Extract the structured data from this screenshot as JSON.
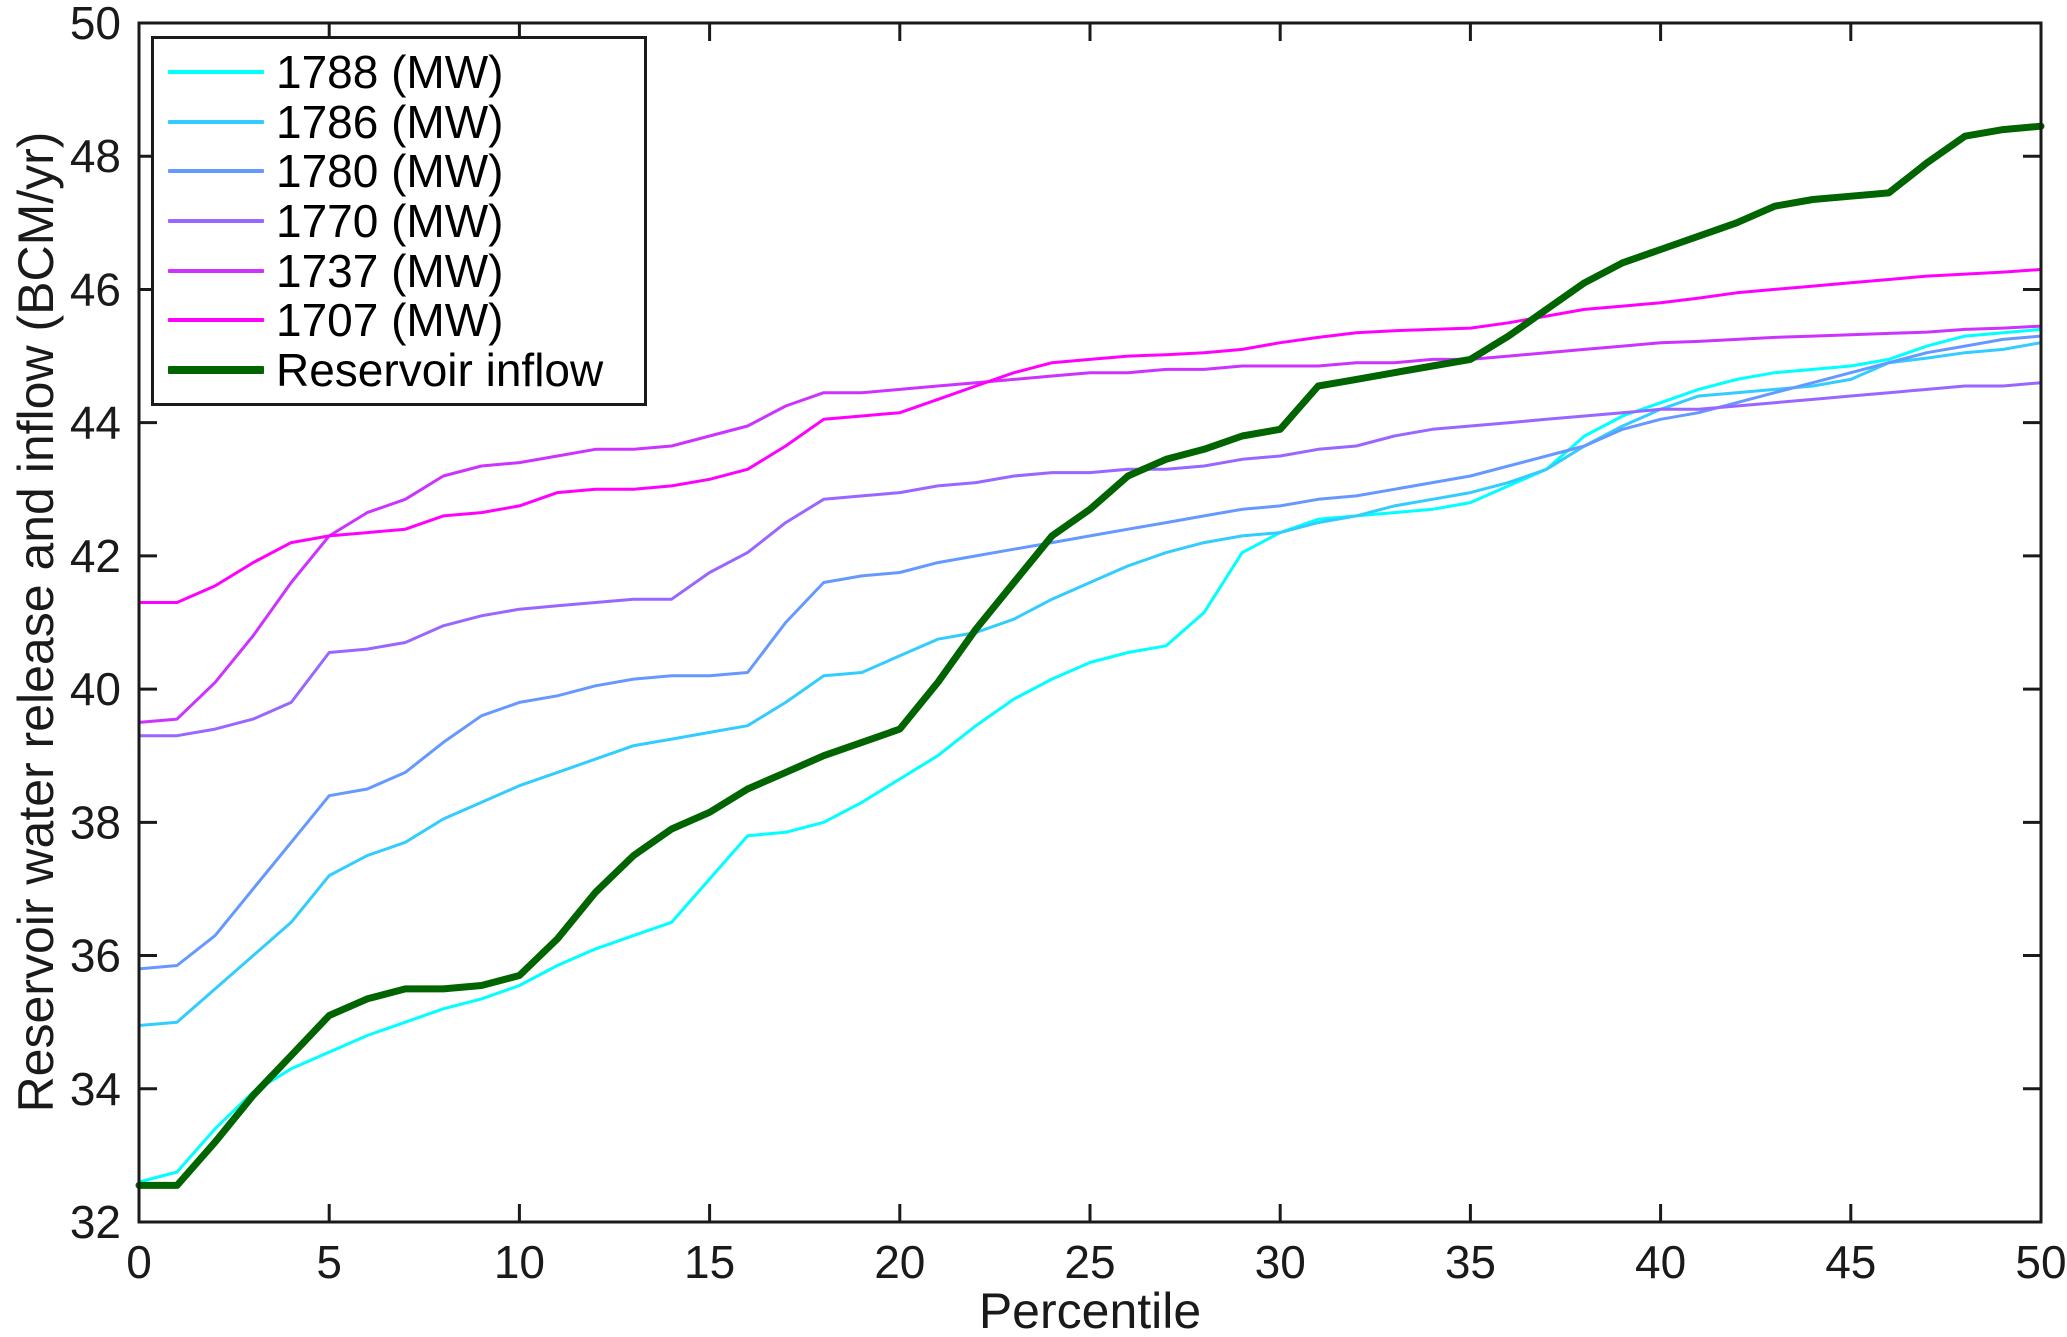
{
  "figure": {
    "background": "#FFFFFF",
    "axis_color": "#1A1A1A",
    "text_color": "#1A1A1A"
  },
  "chart_data": {
    "type": "line",
    "title": "",
    "xlabel": "Percentile",
    "ylabel": "Reservoir water release and inflow (BCM/yr)",
    "xlim": [
      0,
      50
    ],
    "ylim": [
      32,
      50
    ],
    "xticks": [
      0,
      5,
      10,
      15,
      20,
      25,
      30,
      35,
      40,
      45,
      50
    ],
    "yticks": [
      32,
      34,
      36,
      38,
      40,
      42,
      44,
      46,
      48,
      50
    ],
    "grid": false,
    "legend_position": "top-left",
    "x": [
      0,
      1,
      2,
      3,
      4,
      5,
      6,
      7,
      8,
      9,
      10,
      11,
      12,
      13,
      14,
      15,
      16,
      17,
      18,
      19,
      20,
      21,
      22,
      23,
      24,
      25,
      26,
      27,
      28,
      29,
      30,
      31,
      32,
      33,
      34,
      35,
      36,
      37,
      38,
      39,
      40,
      41,
      42,
      43,
      44,
      45,
      46,
      47,
      48,
      49,
      50
    ],
    "series": [
      {
        "name": "1788 (MW)",
        "color": "#00FFFF",
        "width": 3,
        "values": [
          32.6,
          32.75,
          33.4,
          33.95,
          34.3,
          34.55,
          34.8,
          35.0,
          35.2,
          35.35,
          35.55,
          35.85,
          36.1,
          36.3,
          36.5,
          37.15,
          37.8,
          37.85,
          38.0,
          38.3,
          38.65,
          39.0,
          39.45,
          39.85,
          40.15,
          40.4,
          40.55,
          40.65,
          41.15,
          42.05,
          42.35,
          42.55,
          42.6,
          42.65,
          42.7,
          42.8,
          43.05,
          43.3,
          43.8,
          44.1,
          44.3,
          44.5,
          44.65,
          44.75,
          44.8,
          44.85,
          44.95,
          45.15,
          45.3,
          45.35,
          45.4
        ]
      },
      {
        "name": "1786 (MW)",
        "color": "#33CCFF",
        "width": 3,
        "values": [
          34.95,
          35.0,
          35.5,
          36.0,
          36.5,
          37.2,
          37.5,
          37.7,
          38.05,
          38.3,
          38.55,
          38.75,
          38.95,
          39.15,
          39.25,
          39.35,
          39.45,
          39.8,
          40.2,
          40.25,
          40.5,
          40.75,
          40.85,
          41.05,
          41.35,
          41.6,
          41.85,
          42.05,
          42.2,
          42.3,
          42.35,
          42.5,
          42.6,
          42.75,
          42.85,
          42.95,
          43.1,
          43.3,
          43.65,
          43.95,
          44.2,
          44.4,
          44.45,
          44.5,
          44.55,
          44.65,
          44.9,
          44.97,
          45.05,
          45.1,
          45.2
        ]
      },
      {
        "name": "1780 (MW)",
        "color": "#6699FF",
        "width": 3,
        "values": [
          35.8,
          35.85,
          36.3,
          37.0,
          37.7,
          38.4,
          38.5,
          38.75,
          39.2,
          39.6,
          39.8,
          39.9,
          40.05,
          40.15,
          40.2,
          40.2,
          40.25,
          41.0,
          41.6,
          41.7,
          41.75,
          41.9,
          42.0,
          42.1,
          42.2,
          42.3,
          42.4,
          42.5,
          42.6,
          42.7,
          42.75,
          42.85,
          42.9,
          43.0,
          43.1,
          43.2,
          43.35,
          43.5,
          43.65,
          43.9,
          44.05,
          44.15,
          44.3,
          44.45,
          44.6,
          44.75,
          44.9,
          45.05,
          45.15,
          45.25,
          45.3
        ]
      },
      {
        "name": "1770 (MW)",
        "color": "#9966FF",
        "width": 3,
        "values": [
          39.3,
          39.3,
          39.4,
          39.55,
          39.8,
          40.55,
          40.6,
          40.7,
          40.95,
          41.1,
          41.2,
          41.25,
          41.3,
          41.35,
          41.35,
          41.75,
          42.05,
          42.5,
          42.85,
          42.9,
          42.95,
          43.05,
          43.1,
          43.2,
          43.25,
          43.25,
          43.3,
          43.3,
          43.35,
          43.45,
          43.5,
          43.6,
          43.65,
          43.8,
          43.9,
          43.95,
          44.0,
          44.05,
          44.1,
          44.15,
          44.2,
          44.2,
          44.25,
          44.3,
          44.35,
          44.4,
          44.45,
          44.5,
          44.55,
          44.55,
          44.6
        ]
      },
      {
        "name": "1737 (MW)",
        "color": "#CC33FF",
        "width": 3,
        "values": [
          39.5,
          39.55,
          40.1,
          40.8,
          41.6,
          42.3,
          42.65,
          42.85,
          43.2,
          43.35,
          43.4,
          43.5,
          43.6,
          43.6,
          43.65,
          43.8,
          43.95,
          44.25,
          44.45,
          44.45,
          44.5,
          44.55,
          44.6,
          44.65,
          44.7,
          44.75,
          44.75,
          44.8,
          44.8,
          44.85,
          44.85,
          44.85,
          44.9,
          44.9,
          44.95,
          44.95,
          45.0,
          45.05,
          45.1,
          45.15,
          45.2,
          45.22,
          45.25,
          45.28,
          45.3,
          45.32,
          45.34,
          45.36,
          45.4,
          45.42,
          45.45
        ]
      },
      {
        "name": "1707 (MW)",
        "color": "#FF00FF",
        "width": 3,
        "values": [
          41.3,
          41.3,
          41.55,
          41.9,
          42.2,
          42.3,
          42.35,
          42.4,
          42.6,
          42.65,
          42.75,
          42.95,
          43.0,
          43.0,
          43.05,
          43.15,
          43.3,
          43.65,
          44.05,
          44.1,
          44.15,
          44.35,
          44.55,
          44.75,
          44.9,
          44.95,
          45.0,
          45.02,
          45.05,
          45.1,
          45.2,
          45.28,
          45.35,
          45.38,
          45.4,
          45.42,
          45.5,
          45.6,
          45.7,
          45.75,
          45.8,
          45.87,
          45.95,
          46.0,
          46.05,
          46.1,
          46.15,
          46.2,
          46.23,
          46.26,
          46.3
        ]
      },
      {
        "name": "Reservoir inflow",
        "color": "#006400",
        "width": 7,
        "values": [
          32.55,
          32.55,
          33.2,
          33.9,
          34.5,
          35.1,
          35.35,
          35.5,
          35.5,
          35.55,
          35.7,
          36.25,
          36.95,
          37.5,
          37.9,
          38.15,
          38.5,
          38.75,
          39.0,
          39.2,
          39.4,
          40.1,
          40.9,
          41.6,
          42.3,
          42.7,
          43.2,
          43.45,
          43.6,
          43.8,
          43.9,
          44.55,
          44.65,
          44.75,
          44.85,
          44.95,
          45.3,
          45.7,
          46.1,
          46.4,
          46.6,
          46.8,
          47.0,
          47.25,
          47.35,
          47.4,
          47.45,
          47.9,
          48.3,
          48.4,
          48.45
        ]
      }
    ]
  }
}
